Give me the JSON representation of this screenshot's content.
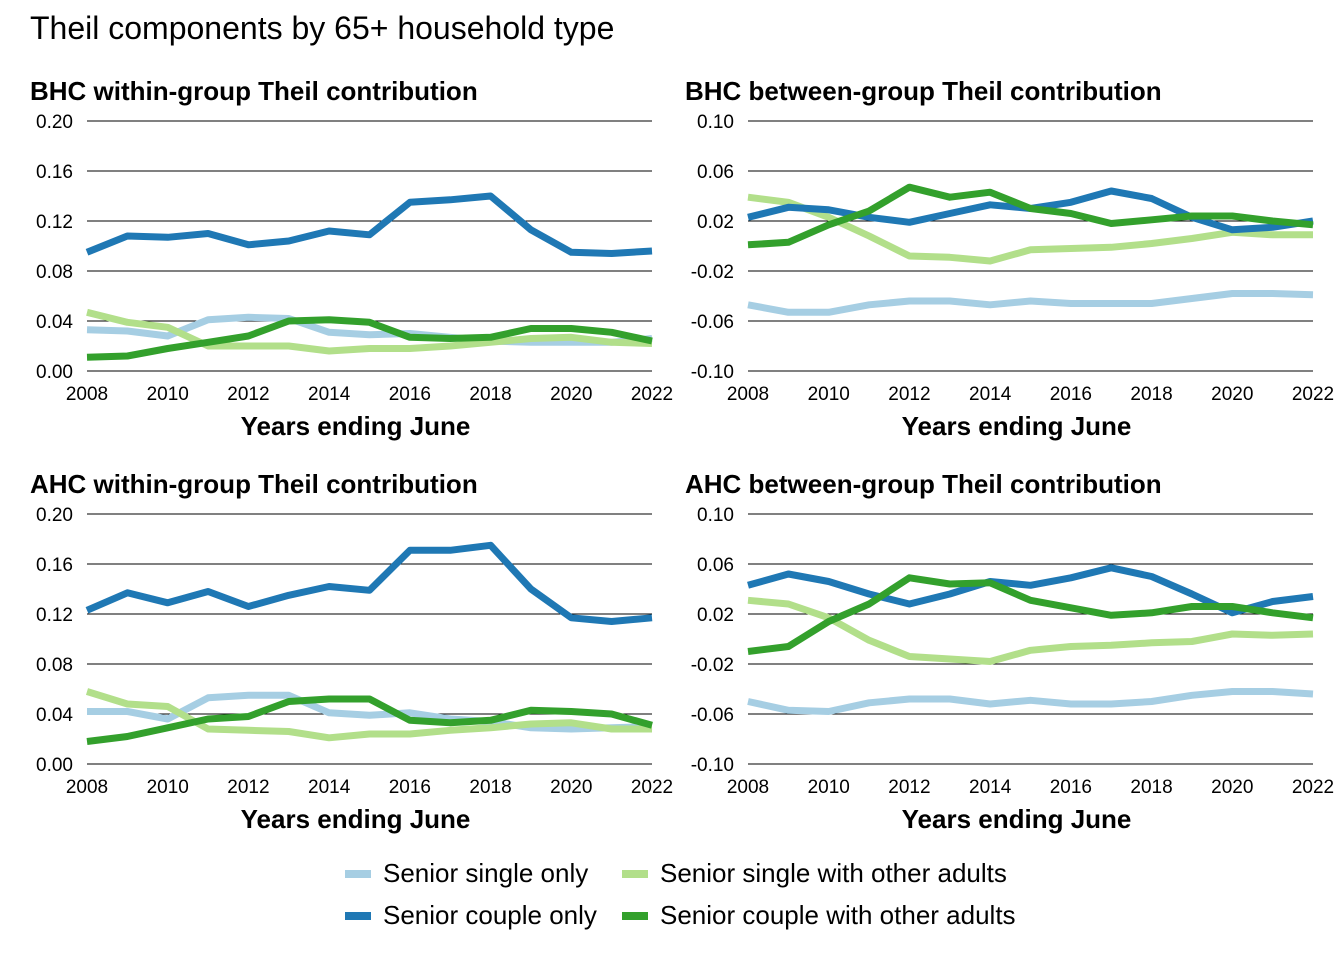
{
  "title": "Theil components by 65+ household type",
  "colors": {
    "senior_single_only": "#a6cee3",
    "senior_couple_only": "#1f78b4",
    "senior_single_with_other_adults": "#b2df8a",
    "senior_couple_with_other_adults": "#33a02c"
  },
  "legend": [
    {
      "name": "Senior single only",
      "color": "#a6cee3"
    },
    {
      "name": "Senior single with other adults",
      "color": "#b2df8a"
    },
    {
      "name": "Senior couple only",
      "color": "#1f78b4"
    },
    {
      "name": "Senior couple with other adults",
      "color": "#33a02c"
    }
  ],
  "chart_data": [
    {
      "type": "line",
      "title": "BHC within-group Theil contribution",
      "xlabel": "Years ending June",
      "ylabel": "",
      "ylim": [
        0,
        0.2
      ],
      "yticks": [
        "0.00",
        "0.04",
        "0.08",
        "0.12",
        "0.16",
        "0.20"
      ],
      "xticks": [
        "2008",
        "2010",
        "2012",
        "2014",
        "2016",
        "2018",
        "2020",
        "2022"
      ],
      "x": [
        2008,
        2009,
        2010,
        2011,
        2012,
        2013,
        2014,
        2015,
        2016,
        2017,
        2018,
        2019,
        2020,
        2021,
        2022
      ],
      "series": [
        {
          "name": "Senior single only",
          "values": [
            0.033,
            0.032,
            0.028,
            0.041,
            0.043,
            0.042,
            0.031,
            0.029,
            0.03,
            0.027,
            0.024,
            0.023,
            0.023,
            0.023,
            0.026
          ]
        },
        {
          "name": "Senior single with other adults",
          "values": [
            0.047,
            0.039,
            0.035,
            0.02,
            0.02,
            0.02,
            0.016,
            0.018,
            0.018,
            0.02,
            0.023,
            0.026,
            0.027,
            0.023,
            0.022
          ]
        },
        {
          "name": "Senior couple only",
          "values": [
            0.095,
            0.108,
            0.107,
            0.11,
            0.101,
            0.104,
            0.112,
            0.109,
            0.135,
            0.137,
            0.14,
            0.113,
            0.095,
            0.094,
            0.096
          ]
        },
        {
          "name": "Senior couple with other adults",
          "values": [
            0.011,
            0.012,
            0.018,
            0.023,
            0.028,
            0.04,
            0.041,
            0.039,
            0.027,
            0.026,
            0.027,
            0.034,
            0.034,
            0.031,
            0.024
          ]
        }
      ]
    },
    {
      "type": "line",
      "title": "BHC between-group Theil contribution",
      "xlabel": "Years ending June",
      "ylabel": "",
      "ylim": [
        -0.1,
        0.1
      ],
      "yticks": [
        "-0.10",
        "-0.06",
        "-0.02",
        "0.02",
        "0.06",
        "0.10"
      ],
      "xticks": [
        "2008",
        "2010",
        "2012",
        "2014",
        "2016",
        "2018",
        "2020",
        "2022"
      ],
      "x": [
        2008,
        2009,
        2010,
        2011,
        2012,
        2013,
        2014,
        2015,
        2016,
        2017,
        2018,
        2019,
        2020,
        2021,
        2022
      ],
      "series": [
        {
          "name": "Senior single only",
          "values": [
            -0.047,
            -0.053,
            -0.053,
            -0.047,
            -0.044,
            -0.044,
            -0.047,
            -0.044,
            -0.046,
            -0.046,
            -0.046,
            -0.042,
            -0.038,
            -0.038,
            -0.039
          ]
        },
        {
          "name": "Senior single with other adults",
          "values": [
            0.039,
            0.035,
            0.023,
            0.008,
            -0.008,
            -0.009,
            -0.012,
            -0.003,
            -0.002,
            -0.001,
            0.002,
            0.006,
            0.011,
            0.009,
            0.009
          ]
        },
        {
          "name": "Senior couple only",
          "values": [
            0.023,
            0.031,
            0.029,
            0.023,
            0.019,
            0.026,
            0.033,
            0.03,
            0.035,
            0.044,
            0.038,
            0.023,
            0.013,
            0.015,
            0.02
          ]
        },
        {
          "name": "Senior couple with other adults",
          "values": [
            0.001,
            0.003,
            0.017,
            0.028,
            0.047,
            0.039,
            0.043,
            0.03,
            0.026,
            0.018,
            0.021,
            0.024,
            0.024,
            0.02,
            0.017
          ]
        }
      ]
    },
    {
      "type": "line",
      "title": "AHC within-group Theil contribution",
      "xlabel": "Years ending June",
      "ylabel": "",
      "ylim": [
        0,
        0.2
      ],
      "yticks": [
        "0.00",
        "0.04",
        "0.08",
        "0.12",
        "0.16",
        "0.20"
      ],
      "xticks": [
        "2008",
        "2010",
        "2012",
        "2014",
        "2016",
        "2018",
        "2020",
        "2022"
      ],
      "x": [
        2008,
        2009,
        2010,
        2011,
        2012,
        2013,
        2014,
        2015,
        2016,
        2017,
        2018,
        2019,
        2020,
        2021,
        2022
      ],
      "series": [
        {
          "name": "Senior single only",
          "values": [
            0.042,
            0.042,
            0.036,
            0.053,
            0.055,
            0.055,
            0.041,
            0.039,
            0.041,
            0.036,
            0.034,
            0.029,
            0.028,
            0.029,
            0.03
          ]
        },
        {
          "name": "Senior single with other adults",
          "values": [
            0.058,
            0.048,
            0.046,
            0.028,
            0.027,
            0.026,
            0.021,
            0.024,
            0.024,
            0.027,
            0.029,
            0.032,
            0.033,
            0.028,
            0.028
          ]
        },
        {
          "name": "Senior couple only",
          "values": [
            0.123,
            0.137,
            0.129,
            0.138,
            0.126,
            0.135,
            0.142,
            0.139,
            0.171,
            0.171,
            0.175,
            0.14,
            0.117,
            0.114,
            0.117
          ]
        },
        {
          "name": "Senior couple with other adults",
          "values": [
            0.018,
            0.022,
            0.029,
            0.036,
            0.038,
            0.05,
            0.052,
            0.052,
            0.035,
            0.033,
            0.035,
            0.043,
            0.042,
            0.04,
            0.031
          ]
        }
      ]
    },
    {
      "type": "line",
      "title": "AHC between-group Theil contribution",
      "xlabel": "Years ending June",
      "ylabel": "",
      "ylim": [
        -0.1,
        0.1
      ],
      "yticks": [
        "-0.10",
        "-0.06",
        "-0.02",
        "0.02",
        "0.06",
        "0.10"
      ],
      "xticks": [
        "2008",
        "2010",
        "2012",
        "2014",
        "2016",
        "2018",
        "2020",
        "2022"
      ],
      "x": [
        2008,
        2009,
        2010,
        2011,
        2012,
        2013,
        2014,
        2015,
        2016,
        2017,
        2018,
        2019,
        2020,
        2021,
        2022
      ],
      "series": [
        {
          "name": "Senior single only",
          "values": [
            -0.05,
            -0.057,
            -0.058,
            -0.051,
            -0.048,
            -0.048,
            -0.052,
            -0.049,
            -0.052,
            -0.052,
            -0.05,
            -0.045,
            -0.042,
            -0.042,
            -0.044
          ]
        },
        {
          "name": "Senior single with other adults",
          "values": [
            0.031,
            0.028,
            0.017,
            -0.001,
            -0.014,
            -0.016,
            -0.018,
            -0.009,
            -0.006,
            -0.005,
            -0.003,
            -0.002,
            0.004,
            0.003,
            0.004
          ]
        },
        {
          "name": "Senior couple only",
          "values": [
            0.043,
            0.052,
            0.046,
            0.036,
            0.028,
            0.036,
            0.046,
            0.043,
            0.049,
            0.057,
            0.05,
            0.036,
            0.021,
            0.03,
            0.034
          ]
        },
        {
          "name": "Senior couple with other adults",
          "values": [
            -0.01,
            -0.006,
            0.014,
            0.028,
            0.049,
            0.044,
            0.045,
            0.031,
            0.025,
            0.019,
            0.021,
            0.026,
            0.026,
            0.021,
            0.017
          ]
        }
      ]
    }
  ]
}
